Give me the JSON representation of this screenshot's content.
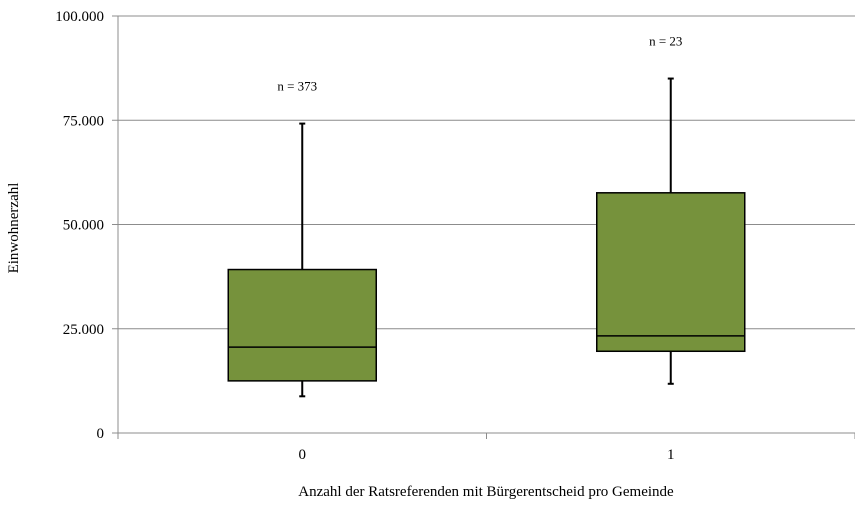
{
  "chart_data": {
    "type": "box",
    "xlabel": "Anzahl der Ratsreferenden mit Bürgerentscheid pro Gemeinde",
    "ylabel": "Einwohnerzahl",
    "ylim": [
      0,
      100000
    ],
    "y_ticks": [
      {
        "value": 0,
        "label": "0"
      },
      {
        "value": 25000,
        "label": "25.000"
      },
      {
        "value": 50000,
        "label": "50.000"
      },
      {
        "value": 75000,
        "label": "75.000"
      },
      {
        "value": 100000,
        "label": "100.000"
      }
    ],
    "grid": true,
    "box_color": "#76923C",
    "categories": [
      "0",
      "1"
    ],
    "boxes": [
      {
        "category": "0",
        "whisker_low": 8800,
        "q1": 12500,
        "median": 20600,
        "q3": 39200,
        "whisker_high": 74200,
        "annotation": "n = 373"
      },
      {
        "category": "1",
        "whisker_low": 11800,
        "q1": 19600,
        "median": 23300,
        "q3": 57600,
        "whisker_high": 85000,
        "annotation": "n = 23"
      }
    ]
  }
}
